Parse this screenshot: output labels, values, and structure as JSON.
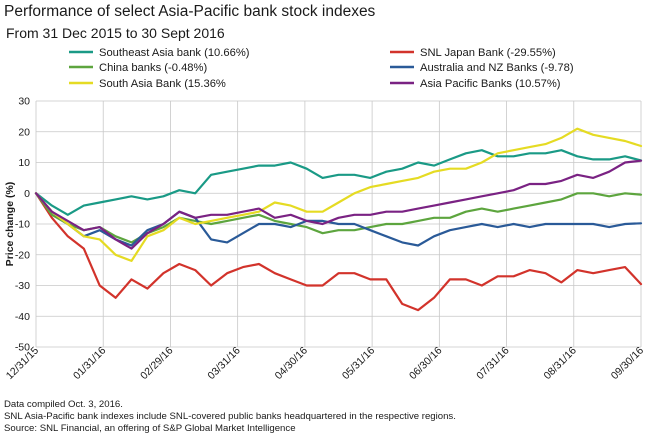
{
  "chart_data": {
    "type": "line",
    "title": "Performance of select Asia-Pacific bank stock indexes",
    "subtitle": "From 31 Dec 2015 to 30 Sept 2016",
    "ylabel": "Price change (%)",
    "xlabel": "",
    "ylim": [
      -50,
      30
    ],
    "yticks": [
      "30",
      "20",
      "10",
      "0",
      "-10",
      "-20",
      "-30",
      "-40",
      "-50"
    ],
    "yticks_values": [
      30,
      20,
      10,
      0,
      -10,
      -20,
      -30,
      -40,
      -50
    ],
    "xticks": [
      "12/31/15",
      "01/31/16",
      "02/29/16",
      "03/31/16",
      "04/30/16",
      "05/31/16",
      "06/30/16",
      "07/31/16",
      "08/31/16",
      "09/30/16"
    ],
    "grid": true,
    "legend_position": "top",
    "series": [
      {
        "name": "Southeast Asia bank (10.66%)",
        "color": "#1a9a86",
        "values": [
          0,
          -4,
          -7,
          -4,
          -3,
          -2,
          -1,
          -2,
          -1,
          1,
          0,
          6,
          7,
          8,
          9,
          9,
          10,
          8,
          5,
          6,
          6,
          5,
          7,
          8,
          10,
          9,
          11,
          13,
          14,
          12,
          12,
          13,
          13,
          14,
          12,
          11,
          11,
          12,
          10.66
        ]
      },
      {
        "name": "SNL Japan Bank (-29.55%)",
        "color": "#d2332b",
        "values": [
          0,
          -8,
          -14,
          -18,
          -30,
          -34,
          -28,
          -31,
          -26,
          -23,
          -25,
          -30,
          -26,
          -24,
          -23,
          -26,
          -28,
          -30,
          -30,
          -26,
          -26,
          -28,
          -28,
          -36,
          -38,
          -34,
          -28,
          -28,
          -30,
          -27,
          -27,
          -25,
          -26,
          -29,
          -25,
          -26,
          -25,
          -24,
          -29.55
        ]
      },
      {
        "name": "China banks (-0.48%)",
        "color": "#5da53e",
        "values": [
          0,
          -7,
          -10,
          -12,
          -11,
          -14,
          -16,
          -13,
          -11,
          -8,
          -9,
          -10,
          -9,
          -8,
          -7,
          -9,
          -10,
          -11,
          -13,
          -12,
          -12,
          -11,
          -10,
          -10,
          -9,
          -8,
          -8,
          -6,
          -5,
          -6,
          -5,
          -4,
          -3,
          -2,
          0,
          0,
          -1,
          0,
          -0.48
        ]
      },
      {
        "name": "Australia and NZ Banks (-9.78)",
        "color": "#2a5a98",
        "values": [
          0,
          -6,
          -10,
          -14,
          -12,
          -15,
          -17,
          -12,
          -10,
          -6,
          -8,
          -15,
          -16,
          -13,
          -10,
          -10,
          -11,
          -9,
          -9,
          -10,
          -10,
          -12,
          -14,
          -16,
          -17,
          -14,
          -12,
          -11,
          -10,
          -11,
          -10,
          -11,
          -10,
          -10,
          -10,
          -10,
          -11,
          -10,
          -9.78
        ]
      },
      {
        "name": "South Asia Bank (15.36%",
        "color": "#e5db23",
        "values": [
          0,
          -6,
          -10,
          -14,
          -15,
          -20,
          -22,
          -14,
          -12,
          -8,
          -10,
          -9,
          -8,
          -7,
          -6,
          -3,
          -4,
          -6,
          -6,
          -3,
          0,
          2,
          3,
          4,
          5,
          7,
          8,
          8,
          10,
          13,
          14,
          15,
          16,
          18,
          21,
          19,
          18,
          17,
          15.36
        ]
      },
      {
        "name": "Asia Pacific Banks (10.57%)",
        "color": "#7a2283",
        "values": [
          0,
          -6,
          -9,
          -12,
          -11,
          -15,
          -18,
          -13,
          -10,
          -6,
          -8,
          -7,
          -7,
          -6,
          -5,
          -8,
          -7,
          -9,
          -10,
          -8,
          -7,
          -7,
          -6,
          -6,
          -5,
          -4,
          -3,
          -2,
          -1,
          0,
          1,
          3,
          3,
          4,
          6,
          5,
          7,
          10,
          10.57
        ]
      }
    ]
  },
  "footer": {
    "line1": "Data compiled Oct. 3, 2016.",
    "line2": "SNL Asia-Pacific bank indexes include SNL-covered public banks headquartered in the respective regions.",
    "line3": "Source: SNL Financial, an offering of S&P Global Market Intelligence"
  }
}
